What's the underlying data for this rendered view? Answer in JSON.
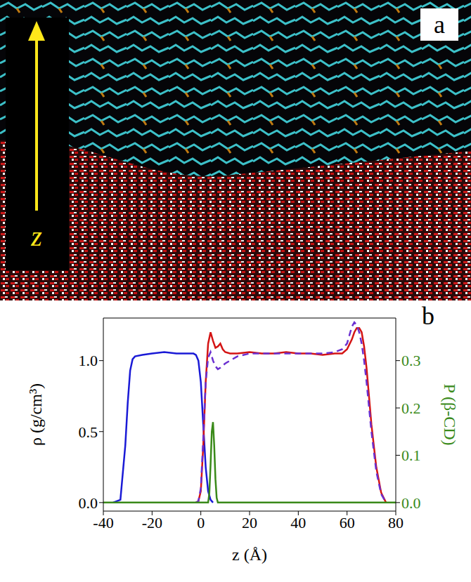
{
  "chart_data": [
    {
      "type": "image",
      "title": "a",
      "annotations": [
        "z"
      ]
    },
    {
      "type": "line",
      "title": "b",
      "x_label": "z (Å)",
      "y_label": "ρ (g/cm³)",
      "y2_label": "P (β-CD)",
      "xlim": [
        -40,
        80
      ],
      "xticks": [
        -40,
        -20,
        0,
        20,
        40,
        60,
        80
      ],
      "ylim": [
        -0.06,
        1.3
      ],
      "yticks": [
        {
          "value": 0,
          "label": "0.0"
        },
        {
          "value": 0.5,
          "label": "0.5"
        },
        {
          "value": 1,
          "label": "1.0"
        }
      ],
      "y2lim": [
        -0.018,
        0.39
      ],
      "y2ticks": [
        {
          "value": 0,
          "label": "0.0"
        },
        {
          "value": 0.1,
          "label": "0.1"
        },
        {
          "value": 0.2,
          "label": "0.2"
        },
        {
          "value": 0.3,
          "label": "0.3"
        }
      ],
      "grid": false,
      "series": [
        {
          "color": "#1a1ad6",
          "line_style": "solid",
          "x": [
            -36,
            -33,
            -31,
            -30,
            -29,
            -28,
            -27,
            -24,
            -20,
            -15,
            -10,
            -5,
            -3,
            -2,
            -1,
            0,
            1,
            2,
            3,
            4,
            5
          ],
          "values": [
            0,
            0.02,
            0.4,
            0.7,
            0.93,
            1.01,
            1.03,
            1.04,
            1.05,
            1.06,
            1.05,
            1.05,
            1.05,
            1.04,
            1.0,
            0.85,
            0.55,
            0.25,
            0.08,
            0.02,
            0
          ]
        },
        {
          "color": "#d41414",
          "line_style": "solid",
          "x": [
            -2,
            -1,
            0,
            1,
            2,
            3,
            4,
            5,
            6,
            7,
            8,
            9,
            10,
            12,
            15,
            20,
            25,
            30,
            35,
            40,
            45,
            50,
            55,
            58,
            60,
            62,
            63,
            64,
            65,
            66,
            67,
            68,
            69,
            70,
            72,
            74,
            76
          ],
          "values": [
            0,
            0.01,
            0.08,
            0.4,
            0.85,
            1.12,
            1.2,
            1.14,
            1.09,
            1.1,
            1.12,
            1.08,
            1.06,
            1.05,
            1.05,
            1.06,
            1.05,
            1.05,
            1.06,
            1.05,
            1.05,
            1.04,
            1.05,
            1.05,
            1.08,
            1.15,
            1.2,
            1.23,
            1.23,
            1.2,
            1.1,
            0.95,
            0.75,
            0.55,
            0.25,
            0.07,
            0
          ]
        },
        {
          "color": "#6a2fd0",
          "line_style": "dashed",
          "x": [
            -2,
            -1,
            0,
            1,
            2,
            3,
            4,
            5,
            6,
            7,
            8,
            10,
            12,
            15,
            20,
            30,
            40,
            50,
            55,
            58,
            60,
            61,
            62,
            63,
            64,
            65,
            66,
            67,
            68,
            70,
            72,
            74,
            76
          ],
          "values": [
            0,
            0.01,
            0.1,
            0.45,
            0.85,
            1.02,
            1.06,
            1.0,
            0.96,
            0.94,
            0.95,
            0.98,
            1.0,
            1.03,
            1.05,
            1.05,
            1.05,
            1.05,
            1.06,
            1.08,
            1.12,
            1.18,
            1.24,
            1.27,
            1.25,
            1.2,
            1.12,
            1.0,
            0.85,
            0.5,
            0.22,
            0.06,
            0
          ]
        },
        {
          "color": "#3a8a1a",
          "line_style": "solid",
          "axis": "y2",
          "x": [
            -40,
            3,
            3.5,
            4,
            4.5,
            5,
            5.5,
            6,
            6.5,
            7,
            80
          ],
          "values": [
            0,
            0,
            0.02,
            0.08,
            0.15,
            0.17,
            0.12,
            0.05,
            0.01,
            0,
            0
          ]
        }
      ]
    }
  ]
}
